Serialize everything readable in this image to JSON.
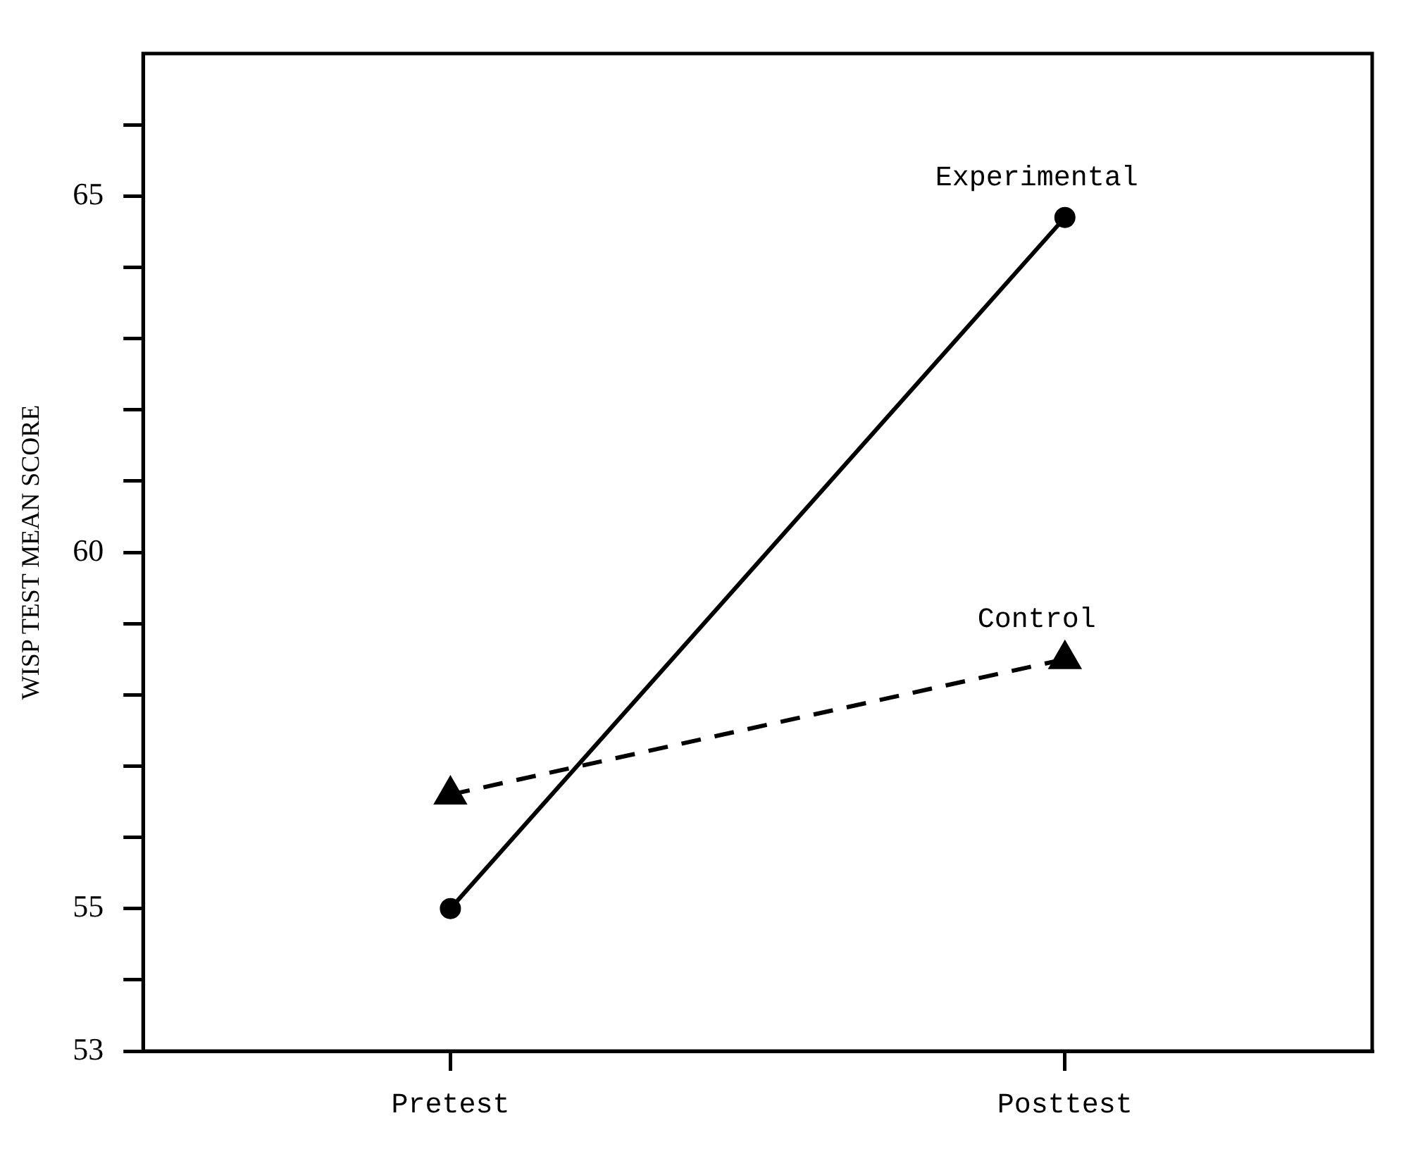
{
  "chart_data": {
    "type": "line",
    "ylabel": "WISP TEST MEAN SCORE",
    "categories": [
      "Pretest",
      "Posttest"
    ],
    "series": [
      {
        "name": "Experimental",
        "color": "#000000",
        "values": [
          55,
          64.7
        ],
        "marker": "circle",
        "line_style": "solid"
      },
      {
        "name": "Control",
        "color": "#000000",
        "values": [
          56.6,
          58.5
        ],
        "marker": "triangle",
        "line_style": "dashed"
      }
    ],
    "ylim": [
      53,
      67
    ],
    "yticks": [
      53,
      {
        "value": 54,
        "label": null
      },
      55,
      {
        "value": 56,
        "label": null
      },
      {
        "value": 57,
        "label": null
      },
      {
        "value": 58,
        "label": null
      },
      {
        "value": 59,
        "label": null
      },
      60,
      {
        "value": 61,
        "label": null
      },
      {
        "value": 62,
        "label": null
      },
      {
        "value": 63,
        "label": null
      },
      {
        "value": 64,
        "label": null
      },
      65,
      {
        "value": 66,
        "label": null
      }
    ],
    "grid": false,
    "legend": false
  }
}
